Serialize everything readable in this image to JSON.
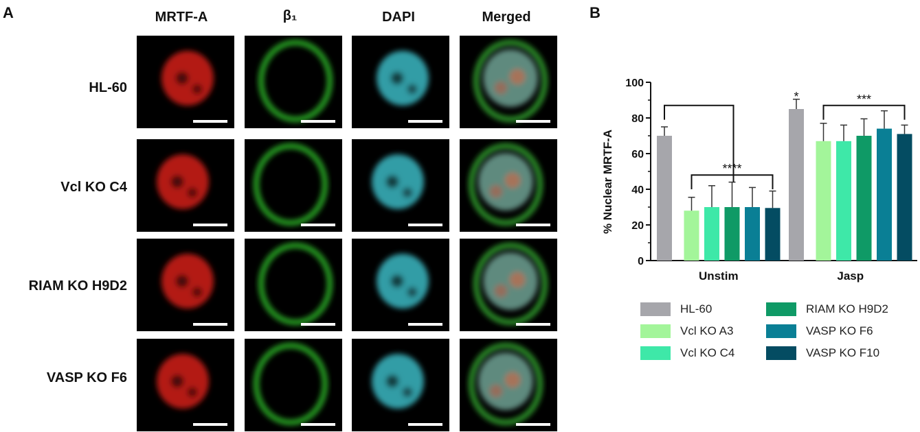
{
  "panel_a": {
    "letter": "A",
    "columns": [
      "MRTF-A",
      "β₁",
      "DAPI",
      "Merged"
    ],
    "rows": [
      "HL-60",
      "Vcl KO C4",
      "RIAM KO H9D2",
      "VASP KO F6"
    ]
  },
  "panel_b": {
    "letter": "B"
  },
  "chart_data": {
    "type": "bar",
    "categories": [
      "Unstim",
      "Jasp"
    ],
    "ylabel": "% Nuclear MRTF-A",
    "xlabel": "",
    "ylim": [
      0,
      100
    ],
    "yticks": [
      0,
      20,
      40,
      60,
      80,
      100
    ],
    "series": [
      {
        "name": "HL-60",
        "color": "#a6a6ab",
        "values": [
          70,
          85
        ],
        "errors": [
          5,
          5.5
        ]
      },
      {
        "name": "Vcl KO A3",
        "color": "#a3f59a",
        "values": [
          28,
          67
        ],
        "errors": [
          7.5,
          10
        ]
      },
      {
        "name": "Vcl KO C4",
        "color": "#3ee8a8",
        "values": [
          30,
          67
        ],
        "errors": [
          12,
          9
        ]
      },
      {
        "name": "RIAM KO H9D2",
        "color": "#0f9a66",
        "values": [
          30,
          70
        ],
        "errors": [
          14,
          9.5
        ]
      },
      {
        "name": "VASP KO F6",
        "color": "#0a7f95",
        "values": [
          30,
          74
        ],
        "errors": [
          11,
          10
        ]
      },
      {
        "name": "VASP KO F10",
        "color": "#044c62",
        "values": [
          29.5,
          71
        ],
        "errors": [
          9.5,
          5
        ]
      }
    ],
    "annotations": [
      {
        "group": "Unstim",
        "text": "****"
      },
      {
        "group": "Jasp",
        "text": "*"
      },
      {
        "group": "Jasp",
        "text": "***"
      }
    ]
  }
}
